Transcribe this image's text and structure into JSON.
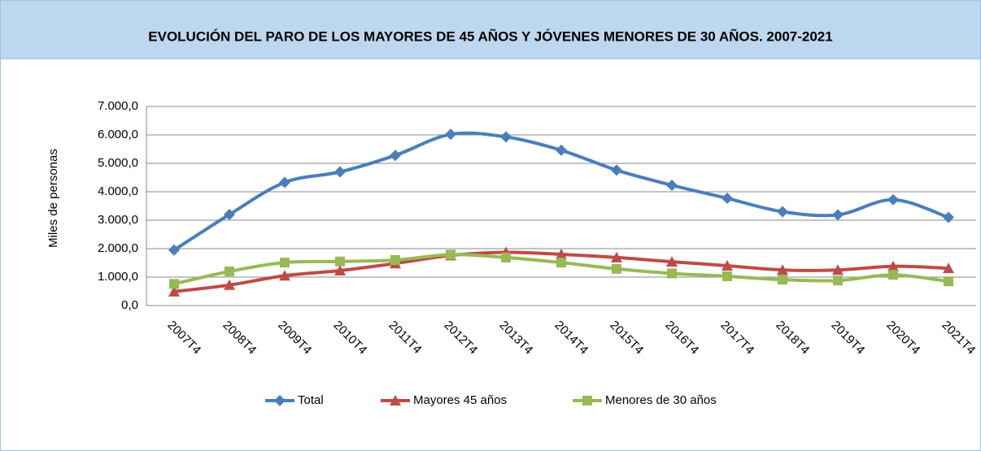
{
  "chart_data": {
    "type": "line",
    "title": "EVOLUCIÓN DEL PARO DE LOS MAYORES DE 45 AÑOS Y JÓVENES MENORES DE 30 AÑOS. 2007-2021",
    "y_label": "Miles de personas",
    "categories": [
      "2007T4",
      "2008T4",
      "2009T4",
      "2010T4",
      "2011T4",
      "2012T4",
      "2013T4",
      "2014T4",
      "2015T4",
      "2016T4",
      "2017T4",
      "2018T4",
      "2019T4",
      "2020T4",
      "2021T4"
    ],
    "series": [
      {
        "name": "Total",
        "color": "#4a7ebb",
        "marker": "diamond",
        "values": [
          1950,
          3200,
          4330,
          4700,
          5280,
          6020,
          5930,
          5460,
          4760,
          4230,
          3770,
          3300,
          3190,
          3720,
          3100
        ]
      },
      {
        "name": "Mayores 45 años",
        "color": "#be4b48",
        "marker": "triangle",
        "values": [
          490,
          720,
          1050,
          1230,
          1480,
          1760,
          1870,
          1800,
          1690,
          1540,
          1400,
          1250,
          1250,
          1380,
          1310
        ]
      },
      {
        "name": "Menores de 30 años",
        "color": "#98b954",
        "marker": "square",
        "values": [
          760,
          1200,
          1510,
          1550,
          1600,
          1790,
          1690,
          1510,
          1290,
          1130,
          1030,
          910,
          880,
          1080,
          850
        ]
      }
    ],
    "ylim": [
      0,
      7000
    ],
    "yticks": [
      {
        "value": 0,
        "label": "0,0"
      },
      {
        "value": 1000,
        "label": "1.000,0"
      },
      {
        "value": 2000,
        "label": "2.000,0"
      },
      {
        "value": 3000,
        "label": "3.000,0"
      },
      {
        "value": 4000,
        "label": "4.000,0"
      },
      {
        "value": 5000,
        "label": "5.000,0"
      },
      {
        "value": 6000,
        "label": "6.000,0"
      },
      {
        "value": 7000,
        "label": "7.000,0"
      }
    ],
    "grid": true,
    "smooth": true,
    "legend": "bottom"
  }
}
